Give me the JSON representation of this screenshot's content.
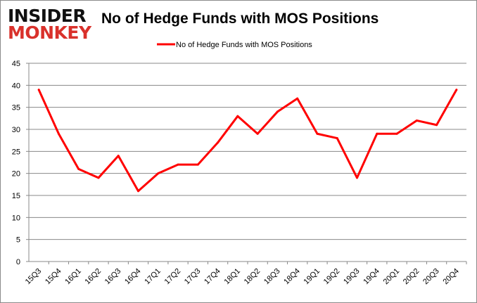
{
  "logo": {
    "line1": "INSIDER",
    "line2": "MONKEY"
  },
  "chart_data": {
    "type": "line",
    "title": "No of Hedge Funds with MOS Positions",
    "xlabel": "",
    "ylabel": "",
    "categories": [
      "15Q3",
      "15Q4",
      "16Q1",
      "16Q2",
      "16Q3",
      "16Q4",
      "17Q1",
      "17Q2",
      "17Q3",
      "17Q4",
      "18Q1",
      "18Q2",
      "18Q3",
      "18Q4",
      "19Q1",
      "19Q2",
      "19Q3",
      "19Q4",
      "20Q1",
      "20Q2",
      "20Q3",
      "20Q4"
    ],
    "series": [
      {
        "name": "No of Hedge Funds with MOS Positions",
        "color": "#ff0000",
        "values": [
          39,
          29,
          21,
          19,
          24,
          16,
          20,
          22,
          22,
          27,
          33,
          29,
          34,
          37,
          29,
          28,
          19,
          29,
          29,
          32,
          31,
          39
        ]
      }
    ],
    "ylim": [
      0,
      45
    ],
    "yticks": [
      0,
      5,
      10,
      15,
      20,
      25,
      30,
      35,
      40,
      45
    ],
    "grid": true,
    "legend": "top-center"
  }
}
